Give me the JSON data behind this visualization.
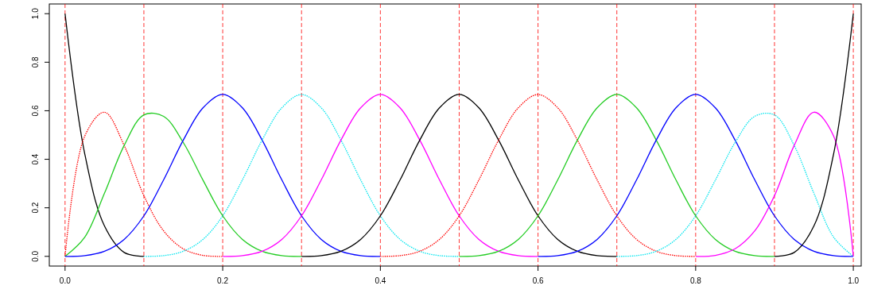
{
  "chart_data": {
    "type": "line",
    "xlim": [
      -0.02,
      1.01
    ],
    "ylim": [
      -0.04,
      1.04
    ],
    "xticks": [
      {
        "value": 0,
        "label": "0.0"
      },
      {
        "value": 0.2,
        "label": "0.2"
      },
      {
        "value": 0.4,
        "label": "0.4"
      },
      {
        "value": 0.6,
        "label": "0.6"
      },
      {
        "value": 0.8,
        "label": "0.8"
      },
      {
        "value": 1,
        "label": "1.0"
      }
    ],
    "yticks": [
      {
        "value": 0,
        "label": "0.0"
      },
      {
        "value": 0.2,
        "label": "0.2"
      },
      {
        "value": 0.4,
        "label": "0.4"
      },
      {
        "value": 0.6,
        "label": "0.6"
      },
      {
        "value": 0.8,
        "label": "0.8"
      },
      {
        "value": 1,
        "label": "1.0"
      }
    ],
    "grid": false,
    "marker": "none",
    "ref_lines": [
      {
        "axis": "x",
        "value": 0,
        "color": "#ff0000",
        "line_style": "dashed"
      },
      {
        "axis": "x",
        "value": 0.1,
        "color": "#ff0000",
        "line_style": "dashed"
      },
      {
        "axis": "x",
        "value": 0.2,
        "color": "#ff0000",
        "line_style": "dashed"
      },
      {
        "axis": "x",
        "value": 0.3,
        "color": "#ff0000",
        "line_style": "dashed"
      },
      {
        "axis": "x",
        "value": 0.4,
        "color": "#ff0000",
        "line_style": "dashed"
      },
      {
        "axis": "x",
        "value": 0.5,
        "color": "#ff0000",
        "line_style": "dashed"
      },
      {
        "axis": "x",
        "value": 0.6,
        "color": "#ff0000",
        "line_style": "dashed"
      },
      {
        "axis": "x",
        "value": 0.7,
        "color": "#ff0000",
        "line_style": "dashed"
      },
      {
        "axis": "x",
        "value": 0.8,
        "color": "#ff0000",
        "line_style": "dashed"
      },
      {
        "axis": "x",
        "value": 0.9,
        "color": "#ff0000",
        "line_style": "dashed"
      },
      {
        "axis": "x",
        "value": 1,
        "color": "#ff0000",
        "line_style": "dashed"
      }
    ],
    "series": [
      {
        "color": "#000000",
        "line_style": "solid",
        "x": [
          0,
          0.025,
          0.05,
          0.075,
          0.1
        ],
        "values": [
          1,
          0.422,
          0.125,
          0.016,
          0
        ]
      },
      {
        "color": "#ff0000",
        "line_style": "dotted",
        "x": [
          0,
          0.025,
          0.05,
          0.075,
          0.1,
          0.125,
          0.15,
          0.175,
          0.2
        ],
        "values": [
          0,
          0.496,
          0.594,
          0.457,
          0.25,
          0.105,
          0.031,
          0.004,
          0
        ]
      },
      {
        "color": "#22cc22",
        "line_style": "solid",
        "x": [
          0,
          0.025,
          0.05,
          0.075,
          0.1,
          0.125,
          0.15,
          0.175,
          0.2,
          0.225,
          0.25,
          0.275,
          0.3
        ],
        "values": [
          0,
          0.079,
          0.26,
          0.457,
          0.583,
          0.577,
          0.469,
          0.314,
          0.167,
          0.07,
          0.021,
          0.003,
          0
        ]
      },
      {
        "color": "#0000ff",
        "line_style": "solid",
        "x": [
          0,
          0.025,
          0.05,
          0.075,
          0.1,
          0.125,
          0.15,
          0.175,
          0.2,
          0.225,
          0.25,
          0.275,
          0.3,
          0.325,
          0.35,
          0.375,
          0.4
        ],
        "values": [
          0,
          0.003,
          0.021,
          0.07,
          0.167,
          0.315,
          0.479,
          0.612,
          0.667,
          0.612,
          0.479,
          0.315,
          0.167,
          0.07,
          0.021,
          0.003,
          0
        ]
      },
      {
        "color": "#00e5ee",
        "line_style": "dotted",
        "x": [
          0.1,
          0.125,
          0.15,
          0.175,
          0.2,
          0.225,
          0.25,
          0.275,
          0.3,
          0.325,
          0.35,
          0.375,
          0.4,
          0.425,
          0.45,
          0.475,
          0.5
        ],
        "values": [
          0,
          0.003,
          0.021,
          0.07,
          0.167,
          0.315,
          0.479,
          0.612,
          0.667,
          0.612,
          0.479,
          0.315,
          0.167,
          0.07,
          0.021,
          0.003,
          0
        ]
      },
      {
        "color": "#ff00ff",
        "line_style": "solid",
        "x": [
          0.2,
          0.225,
          0.25,
          0.275,
          0.3,
          0.325,
          0.35,
          0.375,
          0.4,
          0.425,
          0.45,
          0.475,
          0.5,
          0.525,
          0.55,
          0.575,
          0.6
        ],
        "values": [
          0,
          0.003,
          0.021,
          0.07,
          0.167,
          0.315,
          0.479,
          0.612,
          0.667,
          0.612,
          0.479,
          0.315,
          0.167,
          0.07,
          0.021,
          0.003,
          0
        ]
      },
      {
        "color": "#000000",
        "line_style": "solid",
        "x": [
          0.3,
          0.325,
          0.35,
          0.375,
          0.4,
          0.425,
          0.45,
          0.475,
          0.5,
          0.525,
          0.55,
          0.575,
          0.6,
          0.625,
          0.65,
          0.675,
          0.7
        ],
        "values": [
          0,
          0.003,
          0.021,
          0.07,
          0.167,
          0.315,
          0.479,
          0.612,
          0.667,
          0.612,
          0.479,
          0.315,
          0.167,
          0.07,
          0.021,
          0.003,
          0
        ]
      },
      {
        "color": "#ff0000",
        "line_style": "dotted",
        "x": [
          0.4,
          0.425,
          0.45,
          0.475,
          0.5,
          0.525,
          0.55,
          0.575,
          0.6,
          0.625,
          0.65,
          0.675,
          0.7,
          0.725,
          0.75,
          0.775,
          0.8
        ],
        "values": [
          0,
          0.003,
          0.021,
          0.07,
          0.167,
          0.315,
          0.479,
          0.612,
          0.667,
          0.612,
          0.479,
          0.315,
          0.167,
          0.07,
          0.021,
          0.003,
          0
        ]
      },
      {
        "color": "#22cc22",
        "line_style": "solid",
        "x": [
          0.5,
          0.525,
          0.55,
          0.575,
          0.6,
          0.625,
          0.65,
          0.675,
          0.7,
          0.725,
          0.75,
          0.775,
          0.8,
          0.825,
          0.85,
          0.875,
          0.9
        ],
        "values": [
          0,
          0.003,
          0.021,
          0.07,
          0.167,
          0.315,
          0.479,
          0.612,
          0.667,
          0.612,
          0.479,
          0.315,
          0.167,
          0.07,
          0.021,
          0.003,
          0
        ]
      },
      {
        "color": "#0000ff",
        "line_style": "solid",
        "x": [
          0.6,
          0.625,
          0.65,
          0.675,
          0.7,
          0.725,
          0.75,
          0.775,
          0.8,
          0.825,
          0.85,
          0.875,
          0.9,
          0.925,
          0.95,
          0.975,
          1
        ],
        "values": [
          0,
          0.003,
          0.021,
          0.07,
          0.167,
          0.315,
          0.479,
          0.612,
          0.667,
          0.612,
          0.479,
          0.315,
          0.167,
          0.07,
          0.021,
          0.003,
          0
        ]
      },
      {
        "color": "#00e5ee",
        "line_style": "dotted",
        "x": [
          0.7,
          0.725,
          0.75,
          0.775,
          0.8,
          0.825,
          0.85,
          0.875,
          0.9,
          0.925,
          0.95,
          0.975,
          1
        ],
        "values": [
          0,
          0.003,
          0.021,
          0.07,
          0.167,
          0.314,
          0.469,
          0.577,
          0.583,
          0.457,
          0.26,
          0.079,
          0
        ]
      },
      {
        "color": "#ff00ff",
        "line_style": "solid",
        "x": [
          0.8,
          0.825,
          0.85,
          0.875,
          0.9,
          0.925,
          0.95,
          0.975,
          1
        ],
        "values": [
          0,
          0.004,
          0.031,
          0.105,
          0.25,
          0.457,
          0.594,
          0.496,
          0
        ]
      },
      {
        "color": "#000000",
        "line_style": "solid",
        "x": [
          0.9,
          0.925,
          0.95,
          0.975,
          1
        ],
        "values": [
          0,
          0.016,
          0.125,
          0.422,
          1
        ]
      }
    ]
  }
}
